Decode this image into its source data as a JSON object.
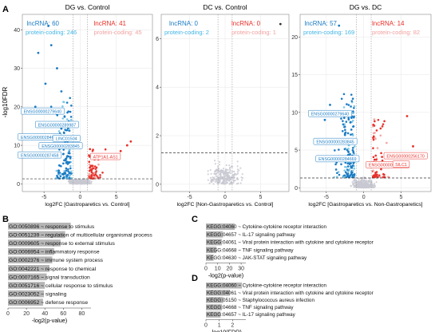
{
  "panel_labels": {
    "A": "A",
    "B": "B",
    "C": "C",
    "D": "D"
  },
  "colors": {
    "up": "#e8302a",
    "up_light": "#f4a6a3",
    "down": "#1b7cc4",
    "down_light": "#7ec8e8",
    "ns": "#c8c8d2",
    "axis": "#222222",
    "grid": "#e6e6e6",
    "bar": "#b5b5b5",
    "lnc_down": "#1b7cc4",
    "pc_down": "#43b5e6",
    "lnc_up": "#e8302a",
    "pc_up": "#f2a0a0"
  },
  "volcano": {
    "ylabel": "-log10FDR",
    "panels": [
      {
        "key": "p1",
        "title": "DG vs. Control",
        "xlabel": "log2FC [Gastroparetics vs. Control]",
        "ylim": [
          -2,
          44
        ],
        "xlim": [
          -8,
          10
        ],
        "yticks": [
          0,
          10,
          20,
          30,
          40
        ],
        "xticks": [
          -5,
          0,
          5
        ],
        "fdr_line": 1.3,
        "fc_lines": [
          -1,
          1
        ],
        "counts": {
          "lnc_down": "lncRNA: 60",
          "pc_down": "protein-coding: 246",
          "lnc_up": "lncRNA: 41",
          "pc_up": "protein-coding: 45"
        },
        "labels": [
          {
            "text": "ENSG00000279640",
            "x": -5.2,
            "y": 18.8
          },
          {
            "text": "ENSG00000289987",
            "x": -3.2,
            "y": 15.3
          },
          {
            "text": "ENSG00000284669",
            "x": -5.6,
            "y": 12.1
          },
          {
            "text": "LINC01504",
            "x": -1.9,
            "y": 11.7
          },
          {
            "text": "ENSG00000283845",
            "x": -2.7,
            "y": 9.8
          },
          {
            "text": "ENSG00000287458",
            "x": -5.6,
            "y": 7.4
          },
          {
            "text": "ATP1A1-AS1",
            "x": 3.5,
            "y": 7.0
          }
        ]
      },
      {
        "key": "p2",
        "title": "DC vs. Control",
        "xlabel": "log2FC [Non-Gastroparetics vs. Control]",
        "ylim": [
          -0.3,
          7
        ],
        "xlim": [
          -9,
          9
        ],
        "yticks": [
          0,
          2,
          4,
          6
        ],
        "xticks": [
          -5,
          0,
          5
        ],
        "fdr_line": 1.3,
        "fc_lines": [
          -1,
          1
        ],
        "counts": {
          "lnc_down": "lncRNA: 0",
          "pc_down": "protein-coding: 2",
          "lnc_up": "lncRNA: 0",
          "pc_up": "protein-coding: 1"
        },
        "labels": []
      },
      {
        "key": "p3",
        "title": "DG vs. DC",
        "xlabel": "log2FC [Gastroparetics vs. Non-Gastroparetics]",
        "ylim": [
          -0.5,
          23
        ],
        "xlim": [
          -8.5,
          9
        ],
        "yticks": [
          0,
          5,
          10,
          15,
          20
        ],
        "xticks": [
          -5,
          0,
          5
        ],
        "fdr_line": 1.3,
        "fc_lines": [
          -1,
          1
        ],
        "counts": {
          "lnc_down": "lncRNA: 57",
          "pc_down": "protein-coding: 169",
          "lnc_up": "lncRNA: 14",
          "pc_up": "protein-coding: 82"
        },
        "labels": [
          {
            "text": "ENSG00000279640",
            "x": -4.5,
            "y": 9.8
          },
          {
            "text": "ENSG00000283845",
            "x": -3.8,
            "y": 6.1
          },
          {
            "text": "ENSG00000284669",
            "x": -3.5,
            "y": 3.8
          },
          {
            "text": "ENSG00000279800",
            "x": 3.2,
            "y": 3.0
          },
          {
            "text": "ENSG00000256170",
            "x": 5.6,
            "y": 4.2
          },
          {
            "text": "SILC1",
            "x": 5.0,
            "y": 3.1
          }
        ]
      }
    ]
  },
  "chart_data": [
    {
      "type": "bar",
      "panel": "B",
      "orientation": "horizontal",
      "categories": [
        "GO:0050896 ~ response to stimulus",
        "GO:0051239 ~ regulation of multicellular organismal process",
        "GO:0009605 ~ response to external stimulus",
        "GO:0006954 ~ inflammatory response",
        "GO:0002376 ~ immune system process",
        "GO:0042221 ~ response to chemical",
        "GO:0007165 ~ signal transduction",
        "GO:0051716 ~ cellular response to stimulus",
        "GO:0023052 ~ signaling",
        "GO:0006952 ~ defense response"
      ],
      "values": [
        68,
        62,
        57,
        50,
        48,
        45,
        42,
        40,
        39,
        38
      ],
      "xlabel": "-log2(p-value)",
      "xlim": [
        0,
        90
      ],
      "xticks": [
        0,
        20,
        40,
        60,
        80
      ]
    },
    {
      "type": "bar",
      "panel": "C",
      "orientation": "horizontal",
      "categories": [
        "KEGG:04060 ~ Cytokine-cytokine receptor interaction",
        "KEGG:04657 ~ IL-17 signaling pathway",
        "KEGG:04061 ~ Viral protein interaction with cytokine and cytokine receptor",
        "KEGG:04668 ~ TNF signaling pathway",
        "KEGG:04630 ~ JAK-STAT signaling pathway"
      ],
      "values": [
        24.5,
        14.5,
        13.5,
        9.0,
        6.5
      ],
      "xlabel": "-log2(p-value)",
      "xlim": [
        0,
        34
      ],
      "xticks": [
        0,
        10,
        20,
        30
      ]
    },
    {
      "type": "bar",
      "panel": "D",
      "orientation": "horizontal",
      "categories": [
        "KEGG:04060 ~ Cytokine-cytokine receptor interaction",
        "KEGG:04061 ~ Viral protein interaction with cytokine and cytokine receptor",
        "KEGG:05150 ~ Staphylococcus aureus infection",
        "KEGG:04668 ~ TNF signaling pathway",
        "KEGG:04657 ~ IL-17 signaling pathway"
      ],
      "values": [
        2.7,
        1.8,
        1.3,
        1.2,
        1.1
      ],
      "xlabel": "-log10(FDR)",
      "xlim": [
        0,
        3
      ],
      "xticks": [
        0,
        1,
        2
      ]
    }
  ]
}
